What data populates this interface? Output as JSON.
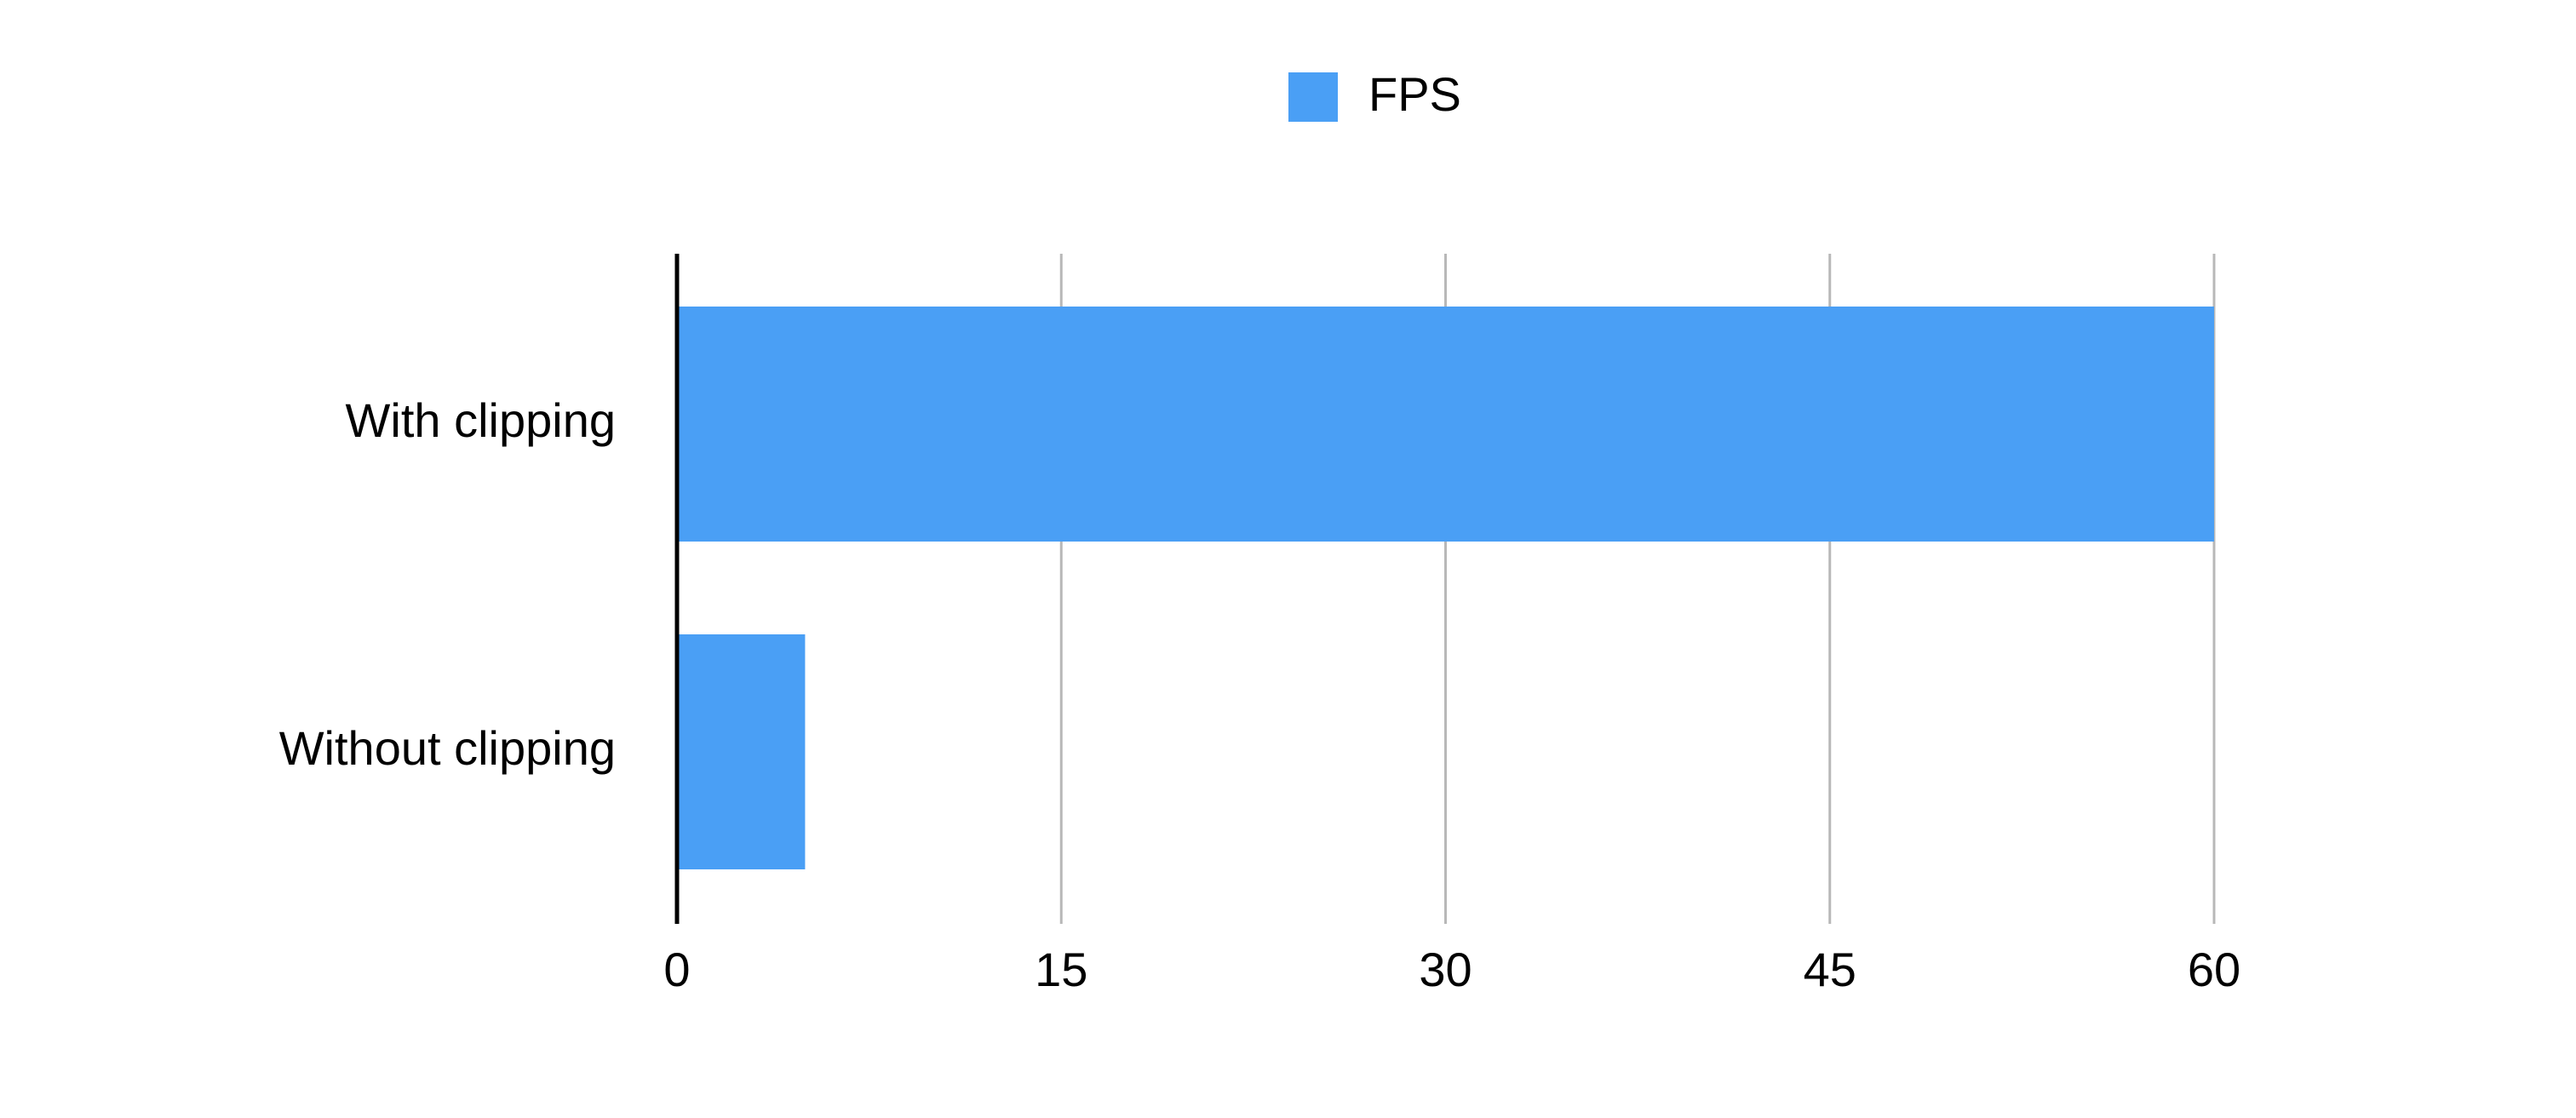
{
  "chart_data": {
    "type": "bar",
    "orientation": "horizontal",
    "categories": [
      "With clipping",
      "Without clipping"
    ],
    "series": [
      {
        "name": "FPS",
        "values": [
          60,
          5
        ],
        "color": "#4A9FF5"
      }
    ],
    "xlim": [
      0,
      60
    ],
    "xticks": [
      0,
      15,
      30,
      45,
      60
    ],
    "grid": true,
    "legend": "top-center"
  }
}
